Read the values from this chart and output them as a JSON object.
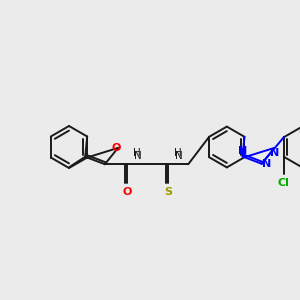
{
  "bg_color": "#ebebeb",
  "bond_color": "#1a1a1a",
  "n_color": "#0000ff",
  "o_color": "#ff0000",
  "s_color": "#999900",
  "cl_color": "#00aa00",
  "line_width": 1.4,
  "figsize": [
    3.0,
    3.0
  ],
  "dpi": 100,
  "xlim": [
    0,
    10
  ],
  "ylim": [
    0,
    10
  ]
}
